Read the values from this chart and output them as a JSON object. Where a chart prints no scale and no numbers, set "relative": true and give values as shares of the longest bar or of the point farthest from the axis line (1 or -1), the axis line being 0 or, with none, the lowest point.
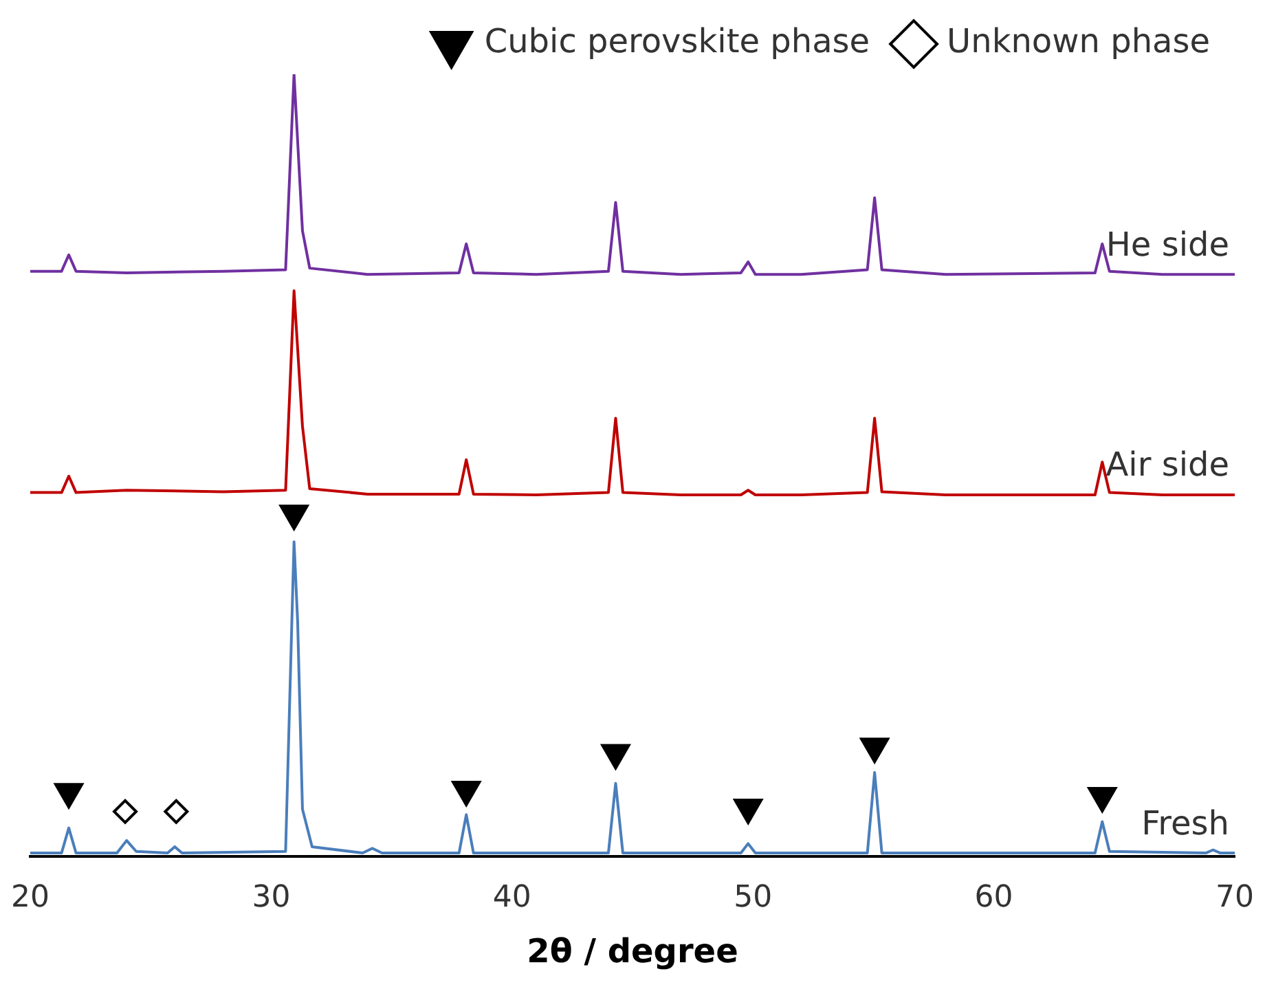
{
  "chart_data": {
    "type": "line",
    "xlabel": "2θ / degree",
    "relative": true,
    "xlim": [
      20,
      70
    ],
    "xticks": [
      20,
      30,
      40,
      50,
      60,
      70
    ],
    "grid": false,
    "legend": "top right",
    "line_style": "solid",
    "series": [
      {
        "name": "He side",
        "color": "#7030a0",
        "marker": "none",
        "x": [
          20,
          21.3,
          21.6,
          21.9,
          24,
          28,
          30.6,
          30.95,
          31.3,
          31.6,
          34,
          37.8,
          38.1,
          38.4,
          41,
          44,
          44.3,
          44.6,
          47,
          49.5,
          49.8,
          50.1,
          52,
          54.75,
          55.05,
          55.35,
          58,
          64.2,
          64.5,
          64.8,
          67,
          70
        ],
        "values": [
          0.748,
          0.748,
          0.769,
          0.748,
          0.746,
          0.748,
          0.75,
          1,
          0.8,
          0.752,
          0.744,
          0.746,
          0.783,
          0.746,
          0.744,
          0.748,
          0.836,
          0.748,
          0.744,
          0.746,
          0.76,
          0.744,
          0.744,
          0.75,
          0.842,
          0.75,
          0.744,
          0.746,
          0.783,
          0.748,
          0.744,
          0.744
        ]
      },
      {
        "name": "Air side",
        "color": "#c00000",
        "marker": "none",
        "x": [
          20,
          21.3,
          21.6,
          21.9,
          24,
          28,
          30.6,
          30.95,
          31.3,
          31.6,
          34,
          37.8,
          38.1,
          38.4,
          41,
          44,
          44.3,
          44.6,
          47,
          49.5,
          49.8,
          50.1,
          52,
          54.75,
          55.05,
          55.35,
          58,
          64.2,
          64.5,
          64.8,
          67,
          70
        ],
        "values": [
          0.465,
          0.465,
          0.486,
          0.465,
          0.468,
          0.466,
          0.468,
          0.723,
          0.55,
          0.47,
          0.463,
          0.463,
          0.507,
          0.463,
          0.462,
          0.465,
          0.56,
          0.465,
          0.462,
          0.462,
          0.468,
          0.462,
          0.462,
          0.465,
          0.56,
          0.466,
          0.462,
          0.462,
          0.504,
          0.465,
          0.462,
          0.462
        ]
      },
      {
        "name": "Fresh",
        "color": "#4a7ebb",
        "marker": "none",
        "x": [
          20,
          21.3,
          21.6,
          21.9,
          23.6,
          24,
          24.4,
          25.7,
          26,
          26.3,
          30.6,
          30.95,
          31.1,
          31.3,
          31.7,
          33.8,
          34.2,
          34.6,
          37.8,
          38.1,
          38.4,
          44,
          44.3,
          44.6,
          49.5,
          49.8,
          50.1,
          54.75,
          55.05,
          55.35,
          64.2,
          64.5,
          64.8,
          68.8,
          69.1,
          69.4,
          70
        ],
        "values": [
          0.004,
          0.004,
          0.036,
          0.004,
          0.004,
          0.02,
          0.006,
          0.004,
          0.012,
          0.004,
          0.006,
          0.402,
          0.3,
          0.06,
          0.012,
          0.004,
          0.01,
          0.004,
          0.004,
          0.053,
          0.004,
          0.004,
          0.093,
          0.004,
          0.004,
          0.016,
          0.004,
          0.004,
          0.107,
          0.004,
          0.004,
          0.044,
          0.006,
          0.004,
          0.008,
          0.004,
          0.004
        ]
      },
      {
        "name": "Cubic perovskite phase",
        "type": "scatter",
        "color": "#000000",
        "marker": "triangle",
        "x": [
          21.6,
          30.95,
          38.1,
          44.3,
          49.8,
          55.05,
          64.5
        ],
        "values": [
          0.082,
          0.438,
          0.085,
          0.132,
          0.062,
          0.14,
          0.077
        ]
      },
      {
        "name": "Unknown phase",
        "type": "scatter",
        "color": "#000000",
        "marker": "diamond",
        "x": [
          23.94,
          26.06
        ],
        "values": [
          0.057,
          0.057
        ]
      }
    ]
  }
}
